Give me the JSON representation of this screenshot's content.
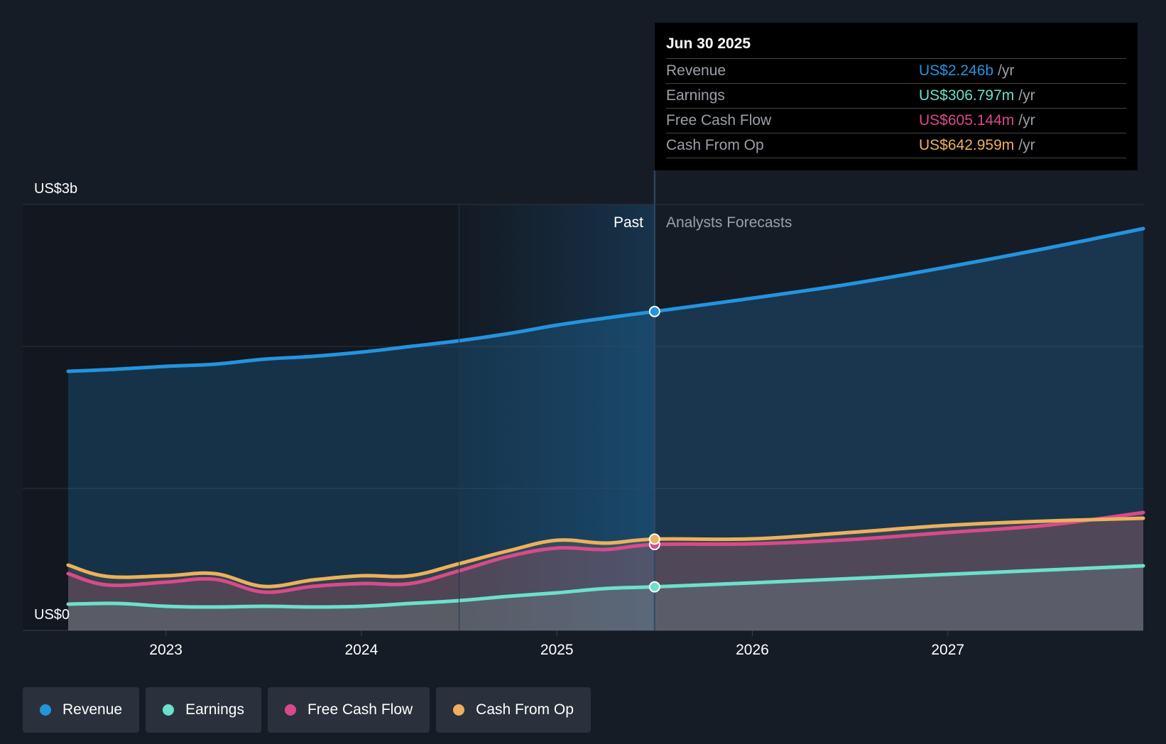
{
  "chart_data": {
    "type": "area",
    "title": "",
    "y_axis": {
      "top_label": "US$3b",
      "bottom_label": "US$0",
      "ylim": [
        0,
        3
      ],
      "units": "US$ billions"
    },
    "x_axis": {
      "ticks": [
        "2023",
        "2024",
        "2025",
        "2026",
        "2027"
      ],
      "xlim": [
        2022.5,
        2028.0
      ]
    },
    "regions": {
      "past_label": "Past",
      "forecast_label": "Analysts Forecasts",
      "divider_x": 2025.5,
      "highlight_start_x": 2024.5
    },
    "series": [
      {
        "name": "Revenue",
        "color": "#2394df",
        "x": [
          2022.5,
          2022.75,
          2023.0,
          2023.25,
          2023.5,
          2023.75,
          2024.0,
          2024.25,
          2024.5,
          2024.75,
          2025.0,
          2025.25,
          2025.5,
          2026.0,
          2026.5,
          2027.0,
          2027.5,
          2028.0
        ],
        "values": [
          1.825,
          1.84,
          1.86,
          1.875,
          1.91,
          1.93,
          1.96,
          2.0,
          2.04,
          2.09,
          2.15,
          2.2,
          2.246,
          2.34,
          2.44,
          2.56,
          2.69,
          2.83
        ]
      },
      {
        "name": "Earnings",
        "color": "#6be0cc",
        "x": [
          2022.5,
          2022.75,
          2023.0,
          2023.25,
          2023.5,
          2023.75,
          2024.0,
          2024.25,
          2024.5,
          2024.75,
          2025.0,
          2025.25,
          2025.5,
          2026.0,
          2026.5,
          2027.0,
          2027.5,
          2028.0
        ],
        "values": [
          0.185,
          0.19,
          0.17,
          0.165,
          0.17,
          0.165,
          0.17,
          0.19,
          0.21,
          0.24,
          0.265,
          0.295,
          0.307,
          0.335,
          0.365,
          0.395,
          0.425,
          0.455
        ]
      },
      {
        "name": "Free Cash Flow",
        "color": "#d94a8c",
        "x": [
          2022.5,
          2022.7,
          2023.0,
          2023.25,
          2023.5,
          2023.75,
          2024.0,
          2024.25,
          2024.5,
          2024.75,
          2025.0,
          2025.25,
          2025.5,
          2026.0,
          2026.5,
          2027.0,
          2027.5,
          2028.0
        ],
        "values": [
          0.4,
          0.32,
          0.34,
          0.36,
          0.27,
          0.31,
          0.33,
          0.33,
          0.42,
          0.52,
          0.58,
          0.57,
          0.605,
          0.61,
          0.64,
          0.69,
          0.74,
          0.83
        ]
      },
      {
        "name": "Cash From Op",
        "color": "#ecb15c",
        "x": [
          2022.5,
          2022.7,
          2023.0,
          2023.25,
          2023.5,
          2023.75,
          2024.0,
          2024.25,
          2024.5,
          2024.75,
          2025.0,
          2025.25,
          2025.5,
          2026.0,
          2026.5,
          2027.0,
          2027.5,
          2028.0
        ],
        "values": [
          0.46,
          0.38,
          0.385,
          0.4,
          0.31,
          0.355,
          0.385,
          0.385,
          0.47,
          0.56,
          0.635,
          0.615,
          0.643,
          0.645,
          0.69,
          0.74,
          0.77,
          0.79
        ]
      }
    ]
  },
  "tooltip": {
    "date": "Jun 30 2025",
    "rows": [
      {
        "label": "Revenue",
        "value": "US$2.246b",
        "unit": "/yr",
        "color": "#2394df"
      },
      {
        "label": "Earnings",
        "value": "US$306.797m",
        "unit": "/yr",
        "color": "#6be0cc"
      },
      {
        "label": "Free Cash Flow",
        "value": "US$605.144m",
        "unit": "/yr",
        "color": "#d94a8c"
      },
      {
        "label": "Cash From Op",
        "value": "US$642.959m",
        "unit": "/yr",
        "color": "#ecb15c"
      }
    ]
  },
  "legend": [
    {
      "label": "Revenue",
      "color": "#2394df"
    },
    {
      "label": "Earnings",
      "color": "#6be0cc"
    },
    {
      "label": "Free Cash Flow",
      "color": "#d94a8c"
    },
    {
      "label": "Cash From Op",
      "color": "#ecb15c"
    }
  ]
}
